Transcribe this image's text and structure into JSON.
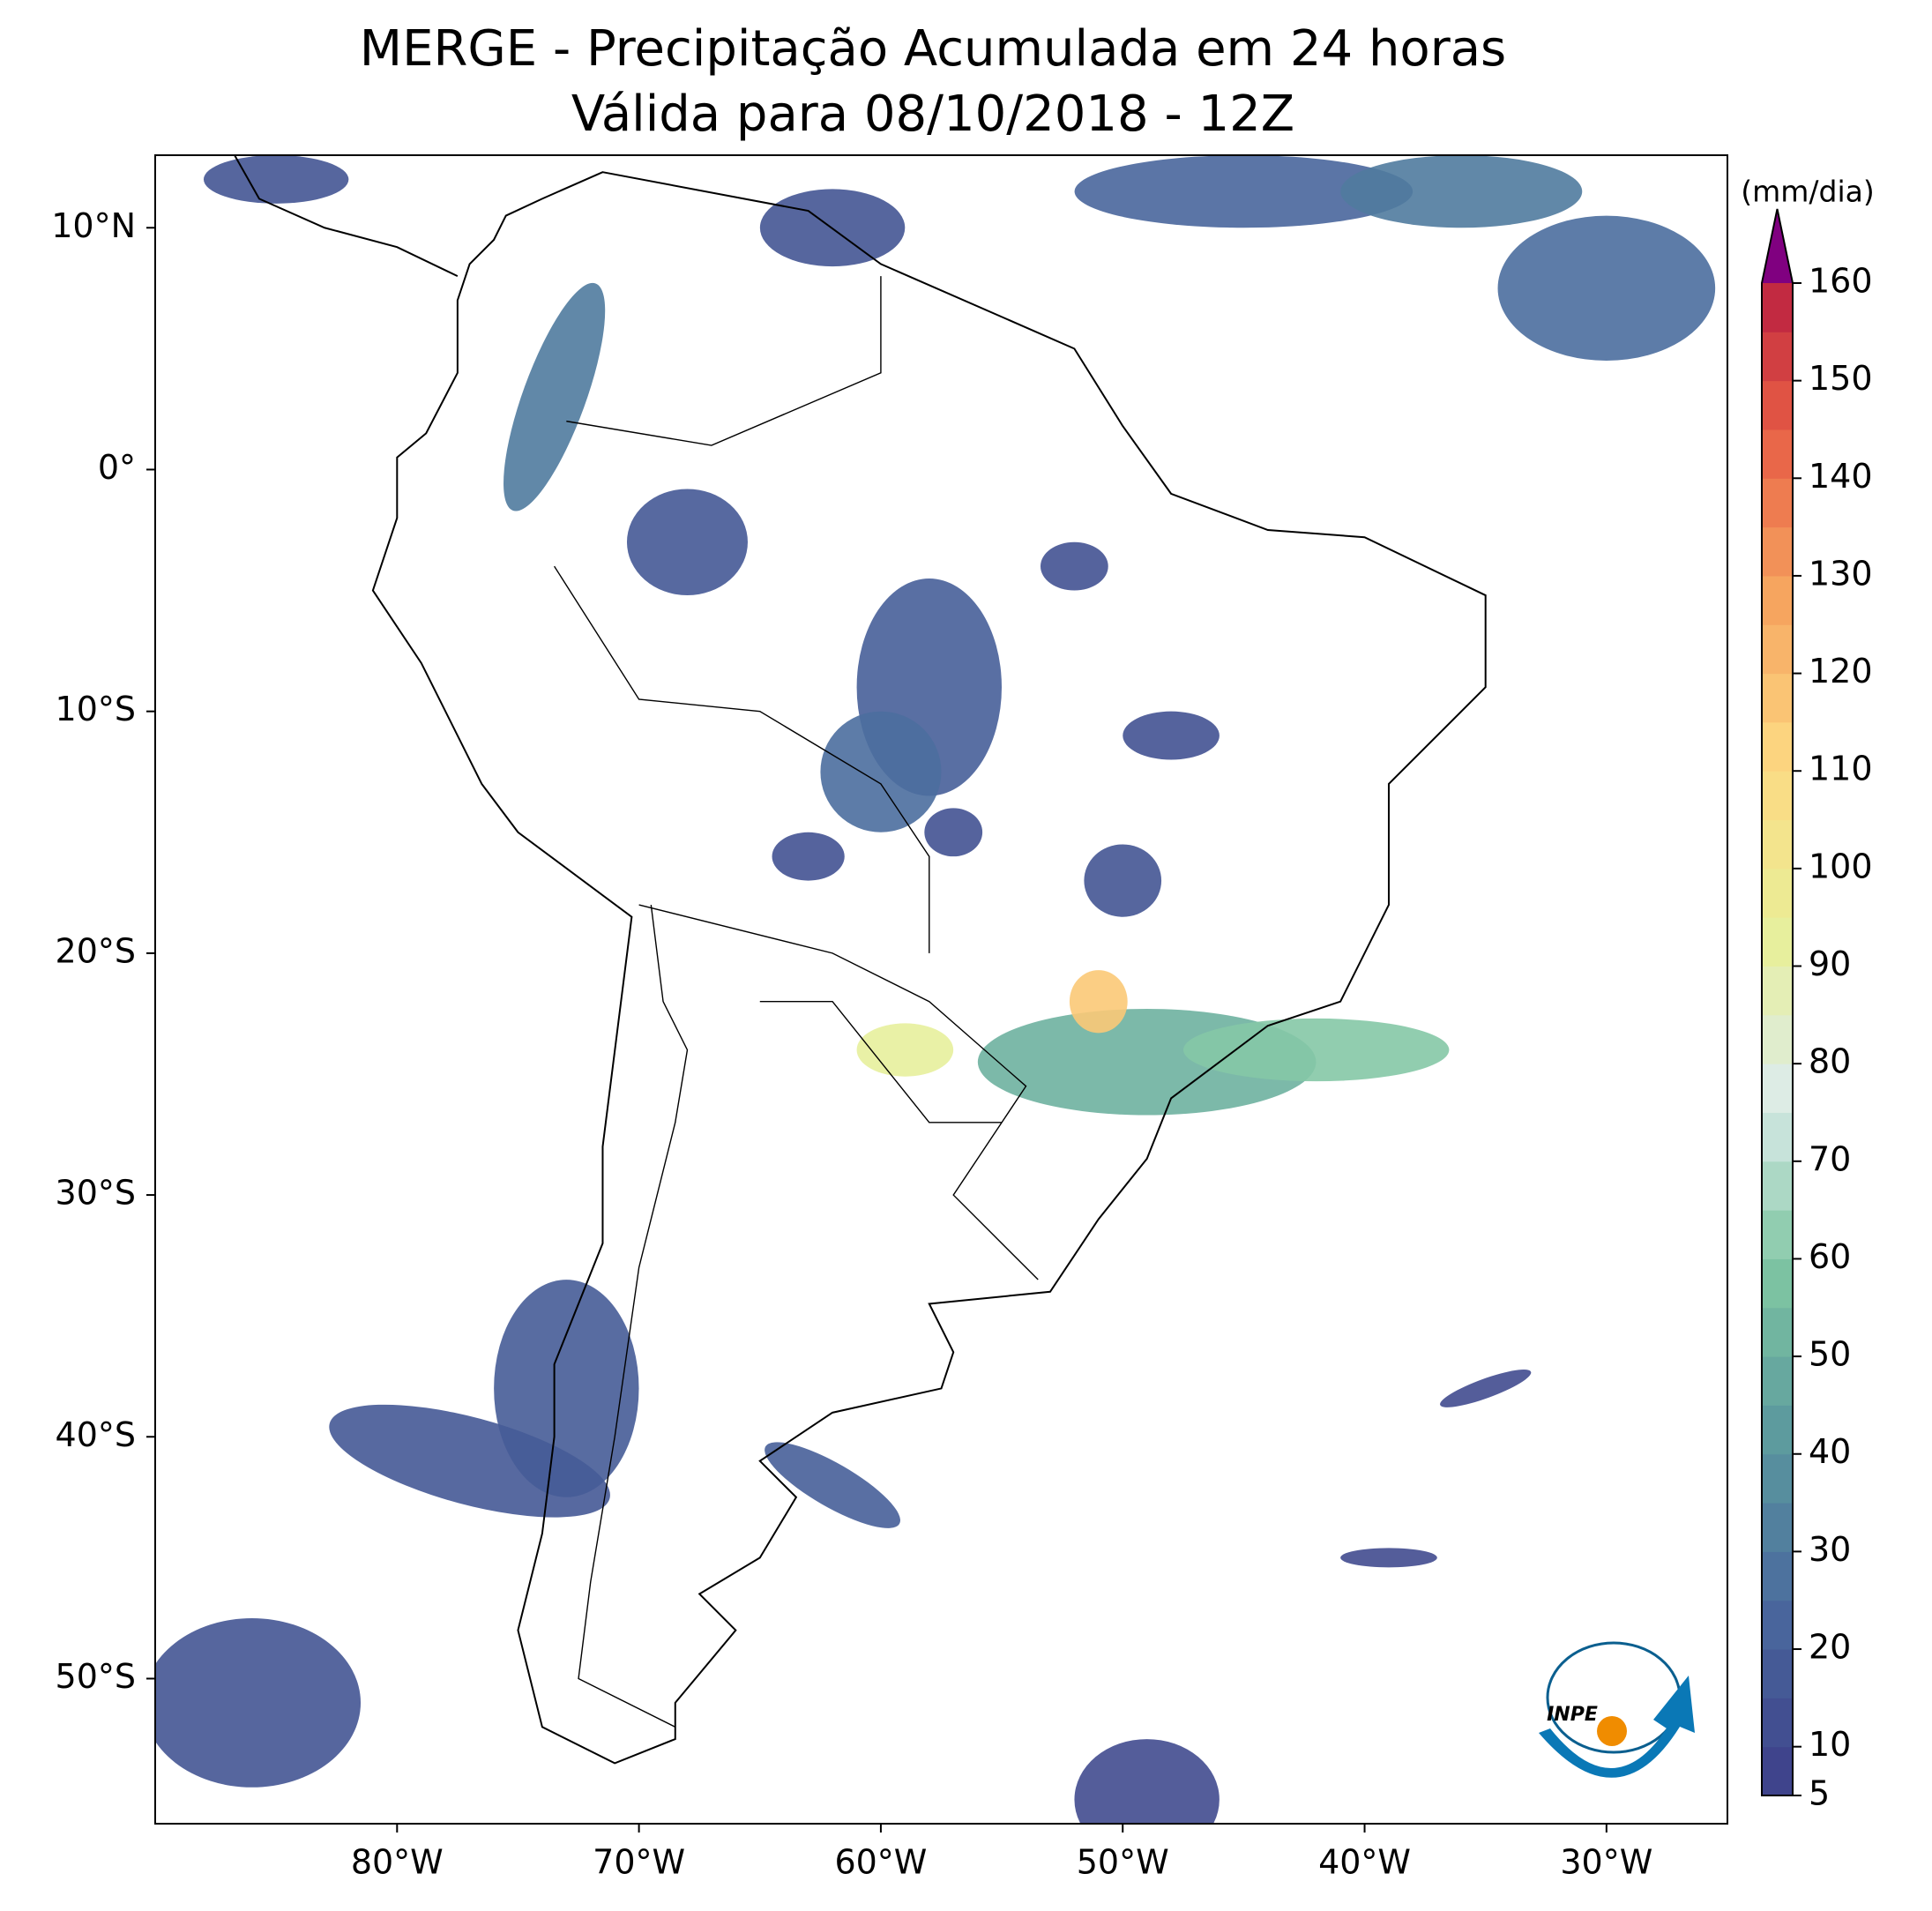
{
  "chart_data": {
    "type": "map",
    "title": "MERGE - Precipitação Acumulada em 24 horas",
    "subtitle": "Válida para 08/10/2018 - 12Z",
    "xlim": [
      -90,
      -25
    ],
    "ylim": [
      -56,
      13
    ],
    "xticks": [
      {
        "value": -80,
        "label": "80°W"
      },
      {
        "value": -70,
        "label": "70°W"
      },
      {
        "value": -60,
        "label": "60°W"
      },
      {
        "value": -50,
        "label": "50°W"
      },
      {
        "value": -40,
        "label": "40°W"
      },
      {
        "value": -30,
        "label": "30°W"
      }
    ],
    "yticks": [
      {
        "value": 10,
        "label": "10°N"
      },
      {
        "value": 0,
        "label": "0°"
      },
      {
        "value": -10,
        "label": "10°S"
      },
      {
        "value": -20,
        "label": "20°S"
      },
      {
        "value": -30,
        "label": "30°S"
      },
      {
        "value": -40,
        "label": "40°S"
      },
      {
        "value": -50,
        "label": "50°S"
      }
    ],
    "colorbar": {
      "label": "(mm/dia)",
      "lim": [
        5,
        160
      ],
      "step": 5,
      "ticks": [
        5,
        10,
        20,
        30,
        40,
        50,
        60,
        70,
        80,
        90,
        100,
        110,
        120,
        130,
        140,
        150,
        160
      ],
      "colors": [
        "#3f448c",
        "#4a6a9e",
        "#5c9a9e",
        "#7fc6a2",
        "#dcecea",
        "#e8ef98",
        "#fdd982",
        "#f6a35e",
        "#e75c45",
        "#b3163f"
      ],
      "extend_color": "#800080"
    },
    "logo": "INPE"
  }
}
